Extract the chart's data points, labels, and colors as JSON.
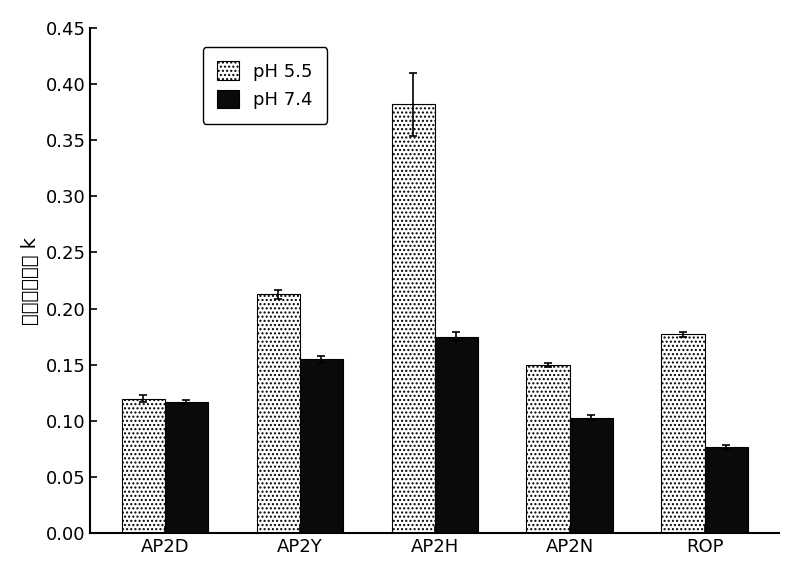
{
  "categories": [
    "AP2D",
    "AP2Y",
    "AP2H",
    "AP2N",
    "ROP"
  ],
  "ph55_values": [
    0.12,
    0.213,
    0.382,
    0.15,
    0.177
  ],
  "ph74_values": [
    0.117,
    0.155,
    0.175,
    0.103,
    0.077
  ],
  "ph55_errors": [
    0.003,
    0.004,
    0.028,
    0.002,
    0.002
  ],
  "ph74_errors": [
    0.002,
    0.003,
    0.004,
    0.002,
    0.002
  ],
  "ph55_color": "#b0b0b0",
  "ph74_color": "#0a0a0a",
  "ylabel": "亲和保留因子 k",
  "ylim": [
    0.0,
    0.45
  ],
  "yticks": [
    0.0,
    0.05,
    0.1,
    0.15,
    0.2,
    0.25,
    0.3,
    0.35,
    0.4,
    0.45
  ],
  "legend_ph55": "pH 5.5",
  "legend_ph74": "pH 7.4",
  "bar_width": 0.32,
  "background_color": "#ffffff",
  "axis_fontsize": 14,
  "tick_fontsize": 13,
  "legend_fontsize": 13
}
